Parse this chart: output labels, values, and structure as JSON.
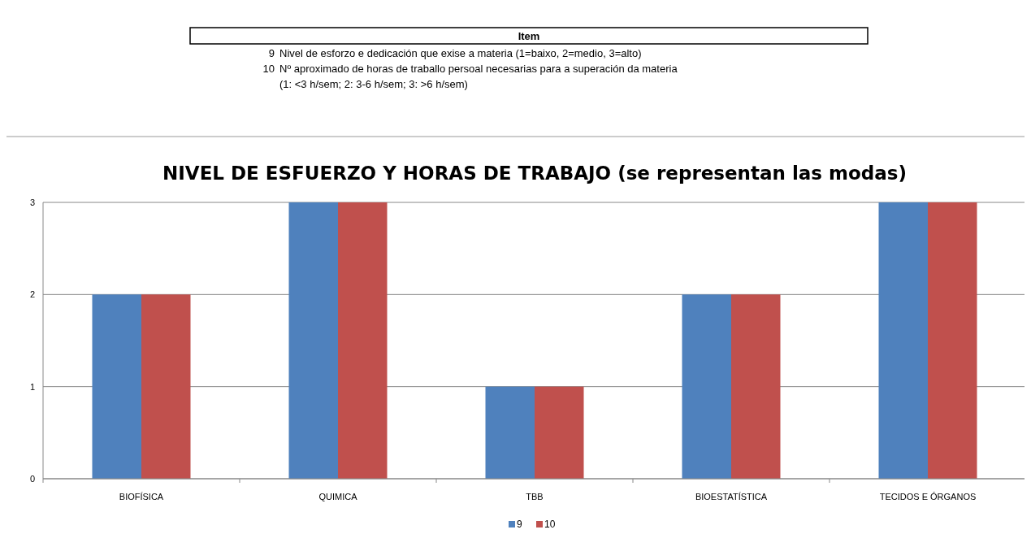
{
  "chart_data": {
    "type": "bar",
    "title": "NIVEL DE ESFUERZO Y HORAS DE TRABAJO (se representan las modas)",
    "annotations": [
      "Item",
      "9",
      "Nivel de esforzo e dedicación que exise a materia (1=baixo, 2=medio, 3=alto)",
      "10",
      "Nº aproximado de horas de traballo persoal necesarias para a superación da materia",
      "(1: <3 h/sem; 2: 3-6 h/sem; 3: >6 h/sem)"
    ],
    "categories": [
      "BIOFÍSICA",
      "QUIMICA",
      "TBB",
      "BIOESTATÍSTICA",
      "TECIDOS E ÓRGANOS"
    ],
    "series": [
      {
        "name": "9",
        "color": "#4f81bd",
        "values": [
          2,
          3,
          1,
          2,
          3
        ]
      },
      {
        "name": "10",
        "color": "#c0504d",
        "values": [
          2,
          3,
          1,
          2,
          3
        ]
      }
    ],
    "ylim": [
      0,
      3
    ],
    "yticks": [
      0,
      1,
      2,
      3
    ],
    "grid": "y",
    "legend": "bottom"
  }
}
